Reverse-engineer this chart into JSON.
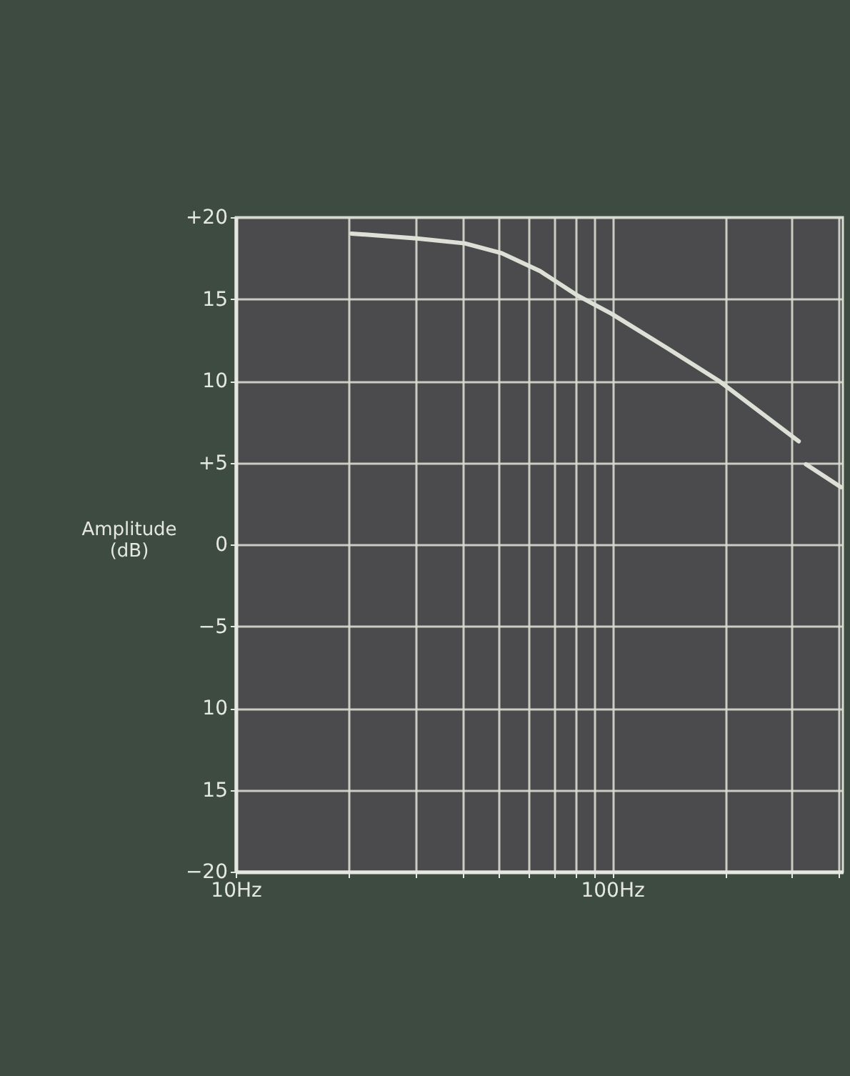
{
  "chart_data": {
    "type": "line",
    "ylabel": "Amplitude (dB)",
    "log": "x",
    "grid": true,
    "marker": "none",
    "line_style": "solid",
    "xlim": [
      10,
      410
    ],
    "ylim": [
      -20,
      20
    ],
    "xticks": [
      {
        "value": 10,
        "label": "10Hz"
      },
      {
        "value": 20,
        "label": null
      },
      {
        "value": 30,
        "label": null
      },
      {
        "value": 40,
        "label": null
      },
      {
        "value": 50,
        "label": null
      },
      {
        "value": 60,
        "label": null
      },
      {
        "value": 70,
        "label": null
      },
      {
        "value": 80,
        "label": null
      },
      {
        "value": 90,
        "label": null
      },
      {
        "value": 100,
        "label": "100Hz"
      },
      {
        "value": 200,
        "label": null
      },
      {
        "value": 300,
        "label": null
      },
      {
        "value": 400,
        "label": null
      }
    ],
    "yticks": [
      {
        "value": 20,
        "label": "+20"
      },
      15,
      10,
      {
        "value": 5,
        "label": "+5"
      },
      0,
      {
        "value": -5,
        "label": "−5"
      },
      {
        "value": -10,
        "label": "10"
      },
      {
        "value": -15,
        "label": "15"
      },
      {
        "value": -20,
        "label": "−20"
      }
    ],
    "x": [
      20.3,
      30.3,
      40.6,
      50.9,
      64.4,
      81.1,
      99.6,
      140,
      192,
      313,
      320,
      327,
      405
    ],
    "series": [
      {
        "color": "#dde0d6",
        "values": [
          19.0,
          18.7,
          18.4,
          17.8,
          16.7,
          15.2,
          14.1,
          12.0,
          10.0,
          6.3,
          null,
          4.9,
          3.5
        ]
      }
    ]
  }
}
